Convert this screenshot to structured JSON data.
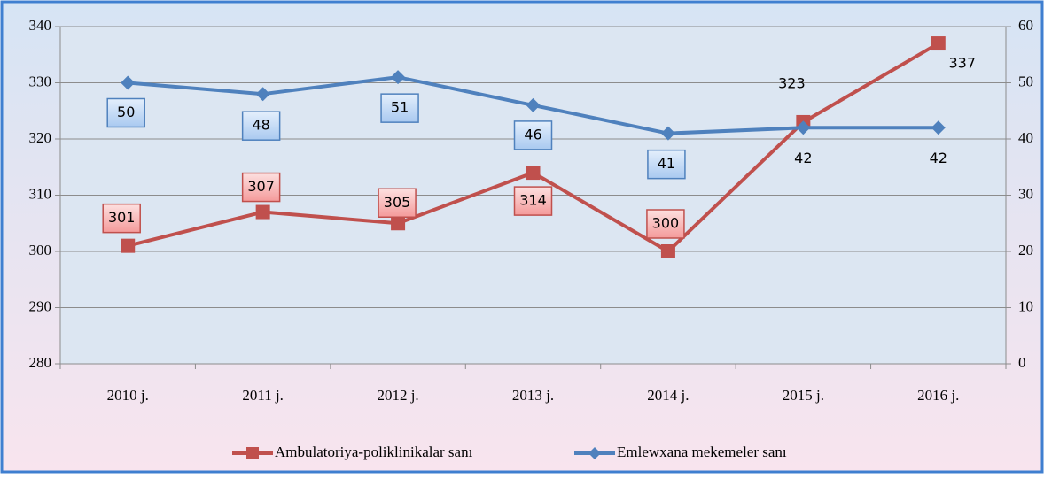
{
  "chart_data": {
    "type": "line",
    "categories": [
      "2010 j.",
      "2011 j.",
      "2012 j.",
      "2013 j.",
      "2014 j.",
      "2015 j.",
      "2016 j."
    ],
    "series": [
      {
        "name": "Ambulatoriya-poliklinikalar sanı",
        "color": "#c0504d",
        "values": [
          301,
          307,
          305,
          314,
          300,
          323,
          337
        ]
      },
      {
        "name": "Emlewxana mekemeler sanı",
        "color": "#4f81bd",
        "axis": "y2",
        "values": [
          50,
          48,
          51,
          46,
          41,
          42,
          42
        ]
      }
    ],
    "ylim": [
      280,
      340
    ],
    "yticks": [
      280,
      290,
      300,
      310,
      320,
      330,
      340
    ],
    "y2lim": [
      0,
      60
    ],
    "y2ticks": [
      0,
      10,
      20,
      30,
      40,
      50,
      60
    ],
    "grid": true,
    "legend": "bottom"
  }
}
